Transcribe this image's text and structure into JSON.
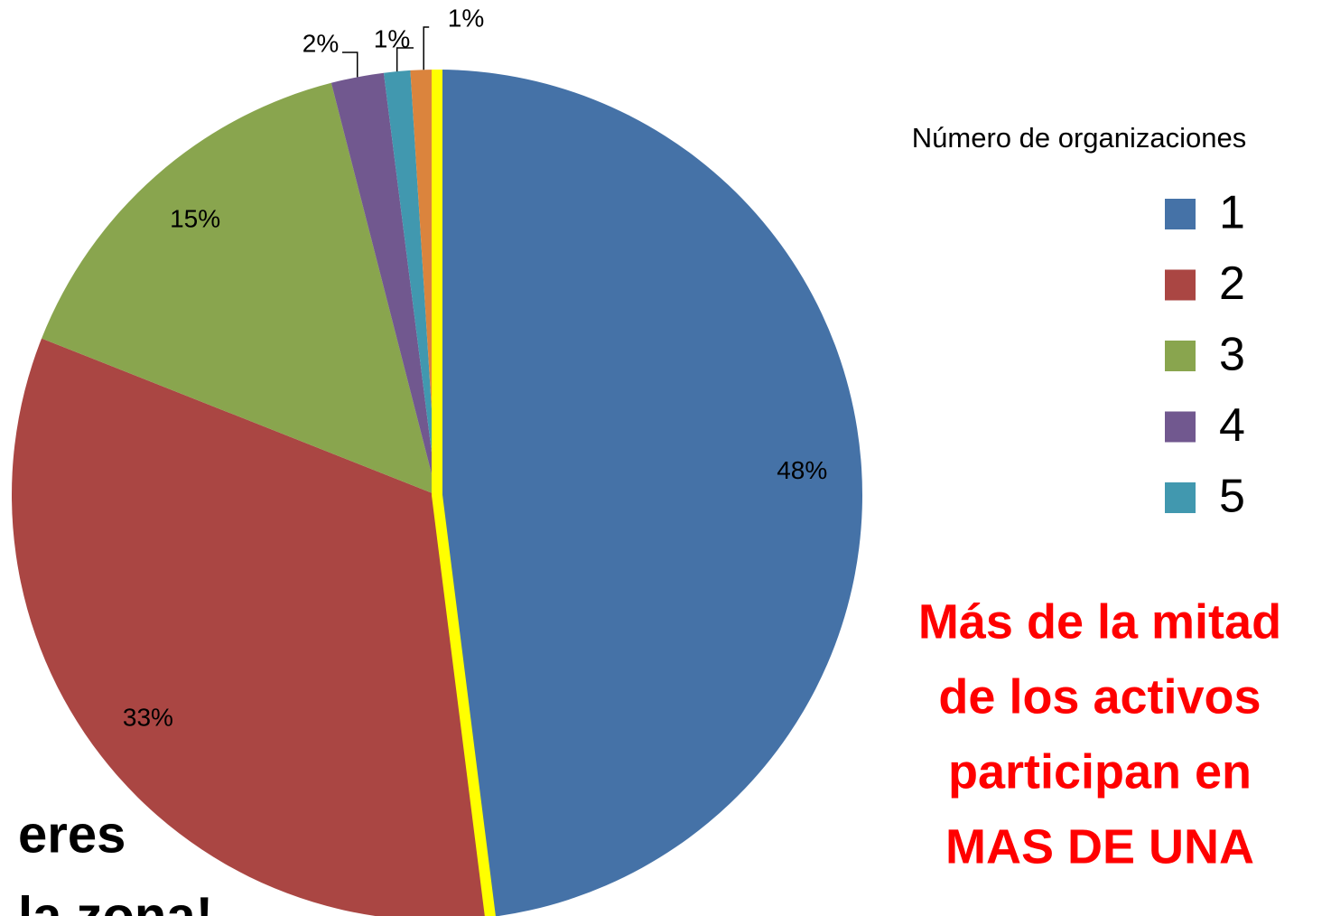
{
  "chart_data": {
    "type": "pie",
    "legend_title": "Número de organizaciones",
    "categories": [
      "1",
      "2",
      "3",
      "4",
      "5",
      null
    ],
    "values": [
      48,
      33,
      15,
      2,
      1,
      1
    ],
    "value_labels": [
      "48%",
      "33%",
      "15%",
      "2%",
      "1%",
      "1%"
    ],
    "colors": [
      "#4572a7",
      "#aa4643",
      "#89a54e",
      "#71588f",
      "#4198af",
      "#db843d"
    ],
    "highlight_color": "#ffff00",
    "note": [
      "Más de la mitad",
      "de los activos",
      "participan en",
      "MAS DE UNA"
    ],
    "note_color": "#ff0000",
    "annotations": [
      "eres",
      "la zona!"
    ]
  }
}
